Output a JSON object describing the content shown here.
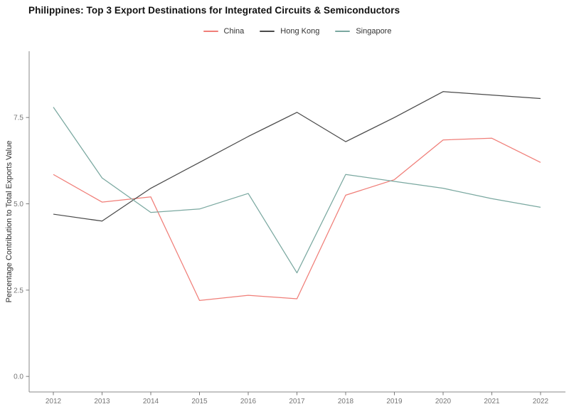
{
  "title": "Philippines: Top 3 Export Destinations for Integrated Circuits & Semiconductors",
  "legend": {
    "items": [
      {
        "label": "China",
        "color": "#f07e78"
      },
      {
        "label": "Hong Kong",
        "color": "#4a4a4a"
      },
      {
        "label": "Singapore",
        "color": "#7aa8a0"
      }
    ]
  },
  "chart_data": {
    "type": "line",
    "title": "Philippines: Top 3 Export Destinations for Integrated Circuits & Semiconductors",
    "xlabel": "",
    "ylabel": "Percentage Contribution to Total Exports Value",
    "x": [
      2012,
      2013,
      2014,
      2015,
      2016,
      2017,
      2018,
      2019,
      2020,
      2021,
      2022
    ],
    "series": [
      {
        "name": "China",
        "color": "#f07e78",
        "values": [
          5.85,
          5.05,
          5.2,
          2.2,
          2.35,
          2.25,
          5.25,
          5.7,
          6.85,
          6.9,
          6.2
        ]
      },
      {
        "name": "Hong Kong",
        "color": "#4a4a4a",
        "values": [
          4.7,
          4.5,
          5.45,
          6.2,
          6.95,
          7.65,
          6.8,
          7.5,
          8.25,
          8.15,
          8.05
        ]
      },
      {
        "name": "Singapore",
        "color": "#7aa8a0",
        "values": [
          7.8,
          5.75,
          4.75,
          4.85,
          5.3,
          3.0,
          5.85,
          5.65,
          5.45,
          5.15,
          4.9
        ]
      }
    ],
    "y_ticks": [
      0.0,
      2.5,
      5.0,
      7.5
    ],
    "y_tick_labels": [
      "0.0",
      "2.5",
      "5.0",
      "7.5"
    ],
    "ylim": [
      -0.45,
      9.42
    ],
    "grid": false,
    "legend_position": "top",
    "axis_color": "#8a8a8a",
    "tick_color": "#7a7a7a"
  }
}
